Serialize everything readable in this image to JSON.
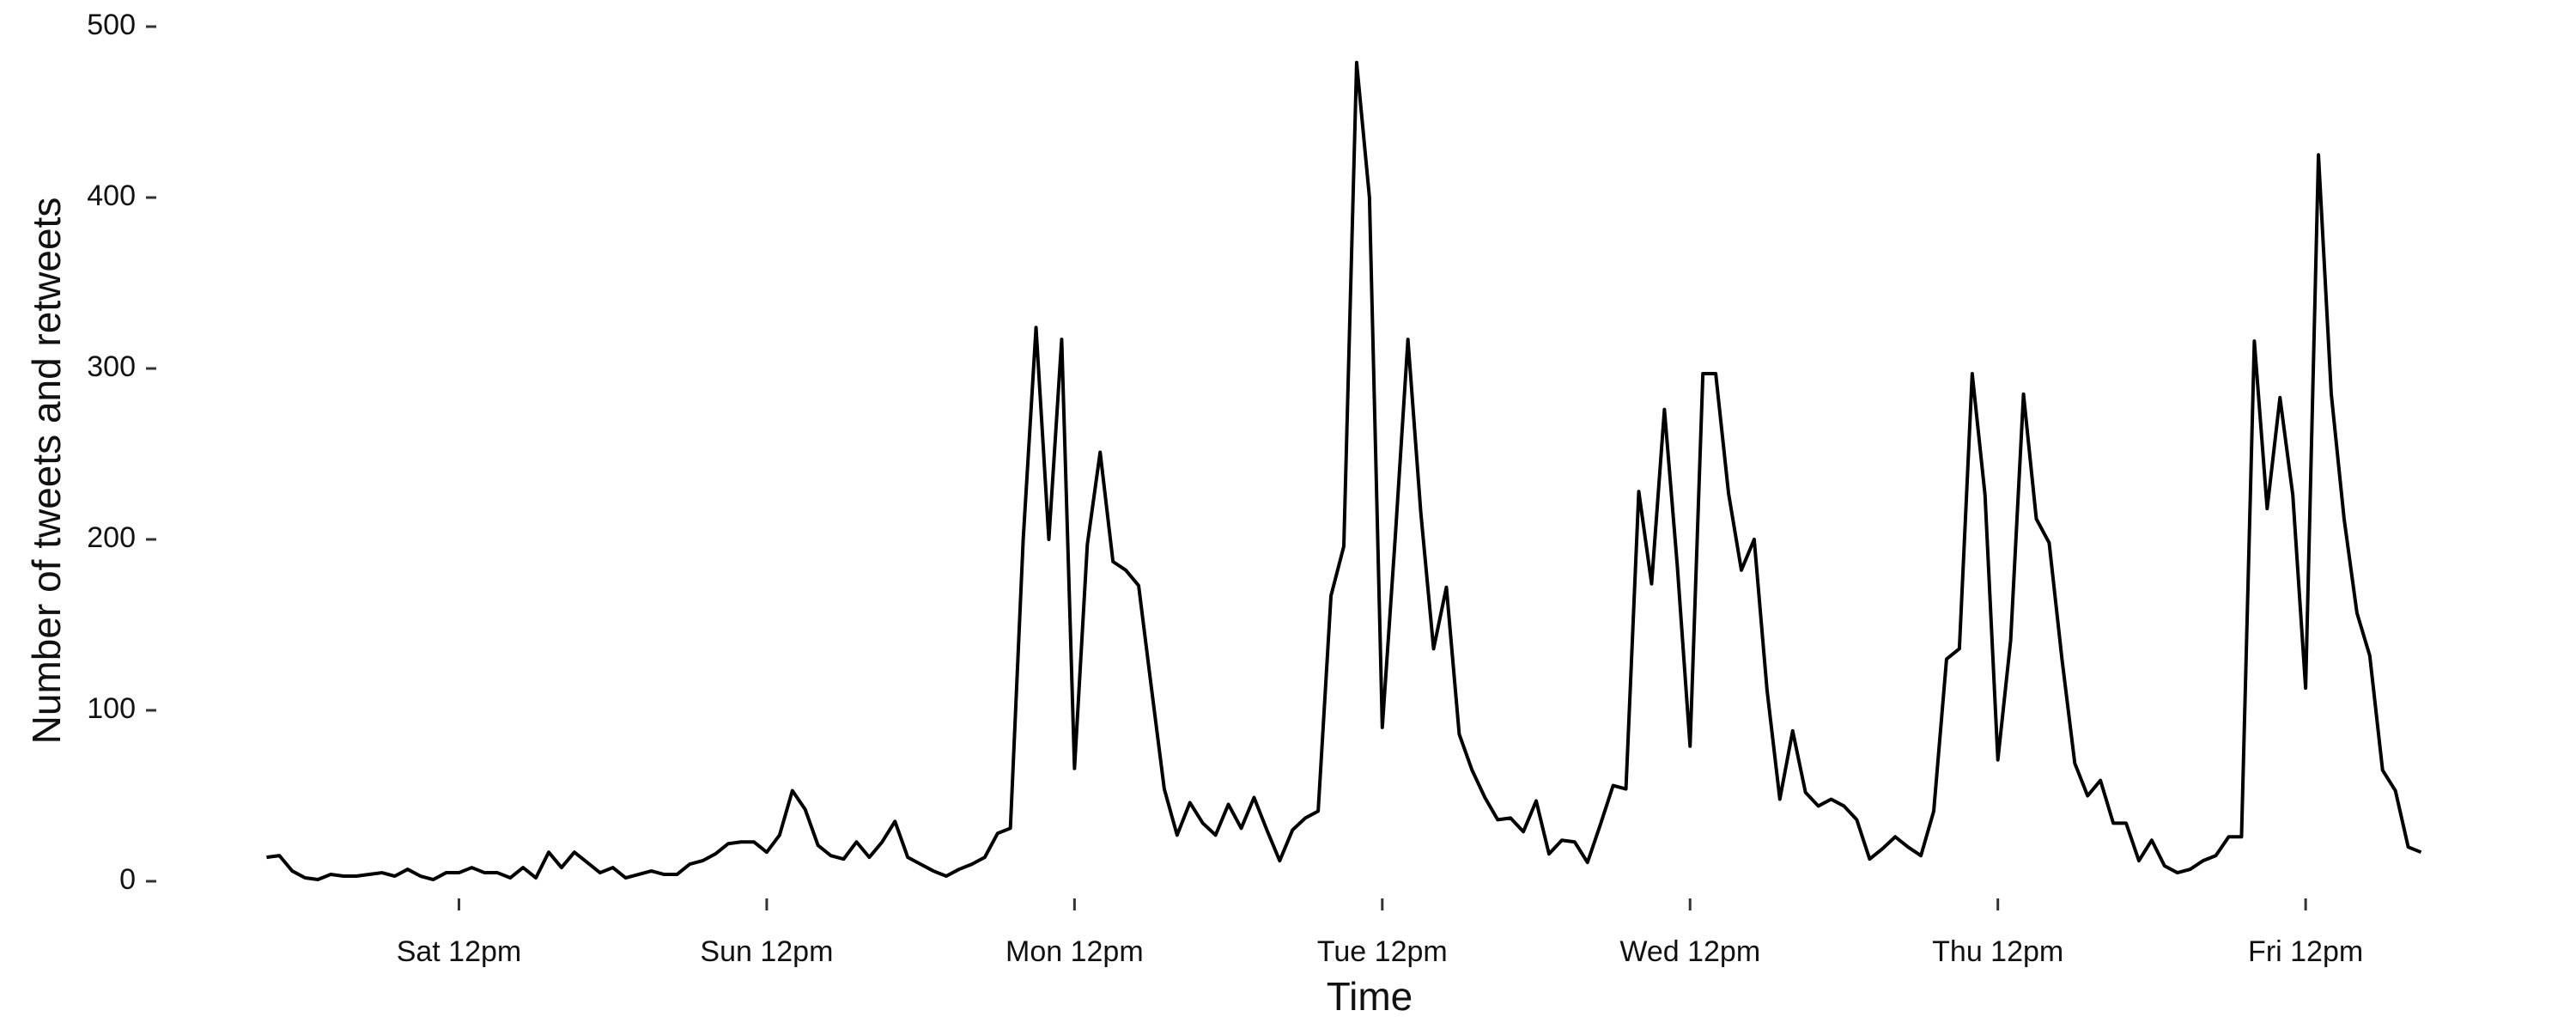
{
  "chart_data": {
    "type": "line",
    "x_label": "Time",
    "y_label": "Number of tweets and retweets",
    "color": "#000000",
    "x": [
      0,
      1,
      2,
      3,
      4,
      5,
      6,
      7,
      8,
      9,
      10,
      11,
      12,
      13,
      14,
      15,
      16,
      17,
      18,
      19,
      20,
      21,
      22,
      23,
      24,
      25,
      26,
      27,
      28,
      29,
      30,
      31,
      32,
      33,
      34,
      35,
      36,
      37,
      38,
      39,
      40,
      41,
      42,
      43,
      44,
      45,
      46,
      47,
      48,
      49,
      50,
      51,
      52,
      53,
      54,
      55,
      56,
      57,
      58,
      59,
      60,
      61,
      62,
      63,
      64,
      65,
      66,
      67,
      68,
      69,
      70,
      71,
      72,
      73,
      74,
      75,
      76,
      77,
      78,
      79,
      80,
      81,
      82,
      83,
      84,
      85,
      86,
      87,
      88,
      89,
      90,
      91,
      92,
      93,
      94,
      95,
      96,
      97,
      98,
      99,
      100,
      101,
      102,
      103,
      104,
      105,
      106,
      107,
      108,
      109,
      110,
      111,
      112,
      113,
      114,
      115,
      116,
      117,
      118,
      119,
      120,
      121,
      122,
      123,
      124,
      125,
      126,
      127,
      128,
      129,
      130,
      131,
      132,
      133,
      134,
      135,
      136,
      137,
      138,
      139,
      140,
      141,
      142,
      143,
      144,
      145,
      146,
      147,
      148,
      149,
      150,
      151,
      152,
      153,
      154,
      155,
      156,
      157,
      158,
      159,
      160,
      161,
      162,
      163,
      164,
      165,
      166,
      167,
      168
    ],
    "values": [
      14,
      15,
      6,
      2,
      1,
      4,
      3,
      3,
      4,
      5,
      3,
      7,
      3,
      1,
      5,
      5,
      8,
      5,
      5,
      2,
      8,
      2,
      17,
      8,
      17,
      11,
      5,
      8,
      2,
      4,
      6,
      4,
      4,
      10,
      12,
      16,
      22,
      23,
      23,
      17,
      27,
      53,
      42,
      21,
      15,
      13,
      23,
      14,
      23,
      35,
      14,
      10,
      6,
      3,
      7,
      10,
      14,
      28,
      31,
      200,
      324,
      200,
      317,
      66,
      197,
      251,
      187,
      182,
      173,
      113,
      54,
      27,
      46,
      34,
      27,
      45,
      31,
      49,
      30,
      12,
      30,
      37,
      41,
      167,
      196,
      479,
      400,
      90,
      200,
      317,
      216,
      136,
      172,
      86,
      65,
      49,
      36,
      37,
      29,
      47,
      16,
      24,
      23,
      11,
      33,
      56,
      54,
      228,
      174,
      276,
      185,
      79,
      297,
      297,
      227,
      182,
      200,
      112,
      48,
      88,
      52,
      44,
      48,
      44,
      36,
      13,
      19,
      26,
      20,
      15,
      41,
      130,
      136,
      297,
      226,
      71,
      141,
      285,
      212,
      198,
      130,
      69,
      50,
      59,
      34,
      34,
      12,
      24,
      9,
      5,
      7,
      12,
      15,
      26,
      26,
      316,
      218,
      283,
      226,
      113,
      425,
      285,
      212,
      157,
      132,
      65,
      53,
      20,
      17
    ],
    "xlim": [
      -8.4,
      176.4
    ],
    "xticks": [
      {
        "value": 15,
        "label": "Sat 12pm"
      },
      {
        "value": 39,
        "label": "Sun 12pm"
      },
      {
        "value": 63,
        "label": "Mon 12pm"
      },
      {
        "value": 87,
        "label": "Tue 12pm"
      },
      {
        "value": 111,
        "label": "Wed 12pm"
      },
      {
        "value": 135,
        "label": "Thu 12pm"
      },
      {
        "value": 159,
        "label": "Fri 12pm"
      }
    ],
    "ylim": [
      0,
      500
    ],
    "yticks": [
      0,
      100,
      200,
      300,
      400,
      500
    ]
  }
}
